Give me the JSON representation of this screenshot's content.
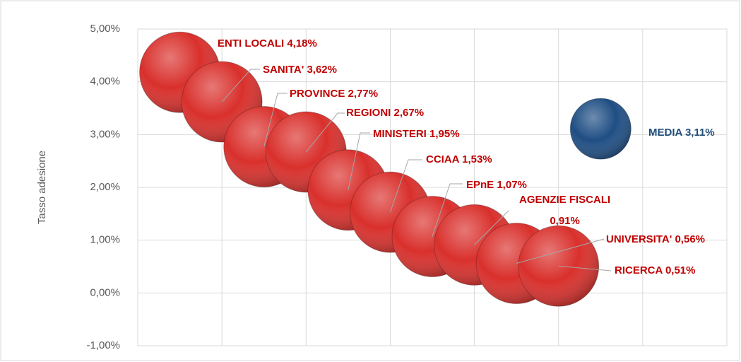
{
  "chart_data": {
    "type": "bubble",
    "y_label": "Tasso adesione",
    "xlim": [
      0,
      7
    ],
    "xticks": [
      0,
      1,
      2,
      3,
      4,
      5,
      6,
      7
    ],
    "ylim": [
      -1,
      5
    ],
    "yticks": [
      {
        "value": -1,
        "label": "-1,00%"
      },
      {
        "value": 0,
        "label": "0,00%"
      },
      {
        "value": 1,
        "label": "1,00%"
      },
      {
        "value": 2,
        "label": "2,00%"
      },
      {
        "value": 3,
        "label": "3,00%"
      },
      {
        "value": 4,
        "label": "4,00%"
      },
      {
        "value": 5,
        "label": "5,00%"
      }
    ],
    "grid": true,
    "series": [
      {
        "color": "#d9302c",
        "label_color": "#c00000",
        "x": [
          0.5,
          1,
          1.5,
          2,
          2.5,
          3,
          3.5,
          4,
          4.5,
          5
        ],
        "values": [
          4.18,
          3.62,
          2.77,
          2.67,
          1.95,
          1.53,
          1.07,
          0.91,
          0.56,
          0.51
        ],
        "sizes": [
          100,
          100,
          100,
          100,
          100,
          100,
          100,
          100,
          100,
          100
        ],
        "value_labels": [
          "ENTI LOCALI 4,18%",
          "SANITA' 3,62%",
          "PROVINCE 2,77%",
          "REGIONI 2,67%",
          "MINISTERI 1,95%",
          "CCIAA 1,53%",
          "EPnE 1,07%",
          "AGENZIE FISCALI\n0,91%",
          "UNIVERSITA' 0,56%",
          "RICERCA 0,51%"
        ]
      },
      {
        "color": "#1f4e84",
        "label_color": "#1f4e79",
        "x": [
          5.5
        ],
        "values": [
          3.11
        ],
        "sizes": [
          57
        ],
        "value_labels": [
          "MEDIA 3,11%"
        ]
      }
    ]
  }
}
